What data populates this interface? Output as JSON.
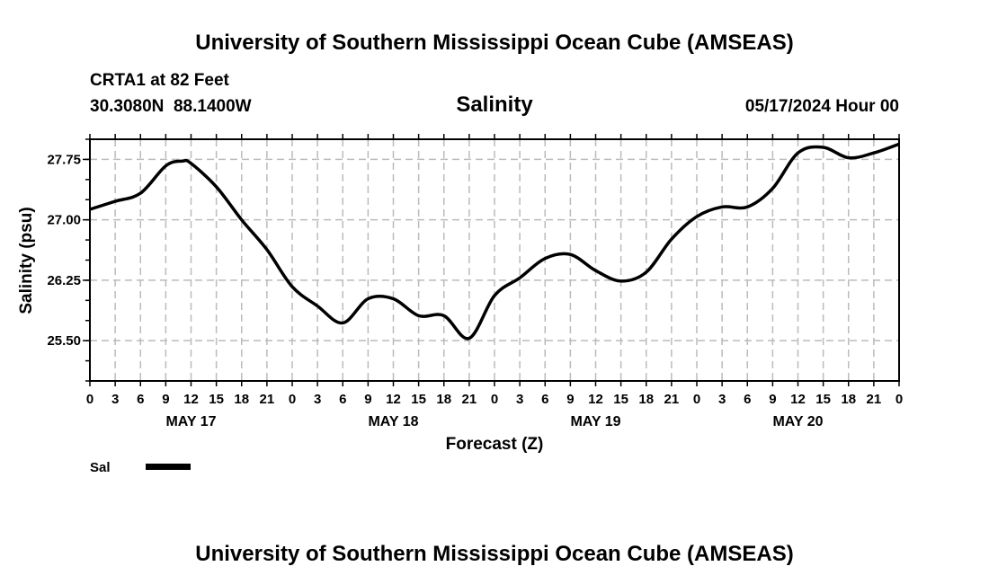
{
  "header": {
    "title": "University of Southern Mississippi Ocean Cube (AMSEAS)",
    "station": "CRTA1 at 82 Feet",
    "coords": "30.3080N  88.1400W",
    "datetime": "05/17/2024 Hour 00",
    "footer_title": "University of Southern Mississippi Ocean Cube (AMSEAS)"
  },
  "chart_data": {
    "type": "line",
    "title": "Salinity",
    "xlabel": "Forecast (Z)",
    "ylabel": "Salinity (psu)",
    "ylim": [
      25.0,
      28.0
    ],
    "xlim": [
      0,
      96
    ],
    "grid": true,
    "yticks": [
      25.5,
      26.25,
      27.0,
      27.75
    ],
    "ytick_labels": [
      "25.50",
      "26.25",
      "27.00",
      "27.75"
    ],
    "xtick_labels": [
      "0",
      "3",
      "6",
      "9",
      "12",
      "15",
      "18",
      "21",
      "0",
      "3",
      "6",
      "9",
      "12",
      "15",
      "18",
      "21",
      "0",
      "3",
      "6",
      "9",
      "12",
      "15",
      "18",
      "21",
      "0",
      "3",
      "6",
      "9",
      "12",
      "15",
      "18",
      "21",
      "0"
    ],
    "day_labels": [
      "MAY 17",
      "MAY 18",
      "MAY 19",
      "MAY 20"
    ],
    "legend": {
      "placement": "bottom-left",
      "entries": [
        "Sal"
      ]
    },
    "series": [
      {
        "name": "Sal",
        "color": "#000000",
        "x": [
          0,
          3,
          6,
          9,
          11,
          12,
          15,
          18,
          21,
          24,
          27,
          30,
          33,
          36,
          39,
          42,
          45,
          48,
          51,
          54,
          57,
          60,
          63,
          66,
          69,
          72,
          75,
          78,
          81,
          84,
          87,
          90,
          93,
          96
        ],
        "values": [
          27.13,
          27.23,
          27.33,
          27.67,
          27.73,
          27.7,
          27.41,
          27.0,
          26.63,
          26.17,
          25.93,
          25.72,
          26.02,
          26.02,
          25.81,
          25.81,
          25.53,
          26.06,
          26.28,
          26.52,
          26.57,
          26.37,
          26.24,
          26.35,
          26.76,
          27.04,
          27.16,
          27.16,
          27.39,
          27.83,
          27.9,
          27.77,
          27.83,
          27.94
        ]
      }
    ]
  }
}
